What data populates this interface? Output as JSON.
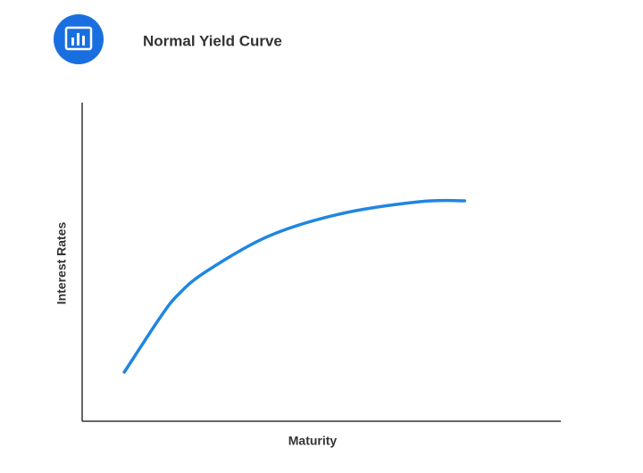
{
  "chart_data": {
    "type": "line",
    "title": "Normal Yield Curve",
    "x_label": "Maturity",
    "y_label": "Interest Rates",
    "x": [
      8.8,
      16.4,
      20.1,
      25.7,
      38.8,
      53.7,
      70.5,
      79.9
    ],
    "series": [
      {
        "color": "#1f86e0",
        "values": [
          15.4,
          32.8,
          39.8,
          46.8,
          58.0,
          65.0,
          68.9,
          69.2
        ]
      }
    ],
    "xlim": [
      0,
      100
    ],
    "ylim": [
      0,
      100
    ],
    "grid": false
  }
}
